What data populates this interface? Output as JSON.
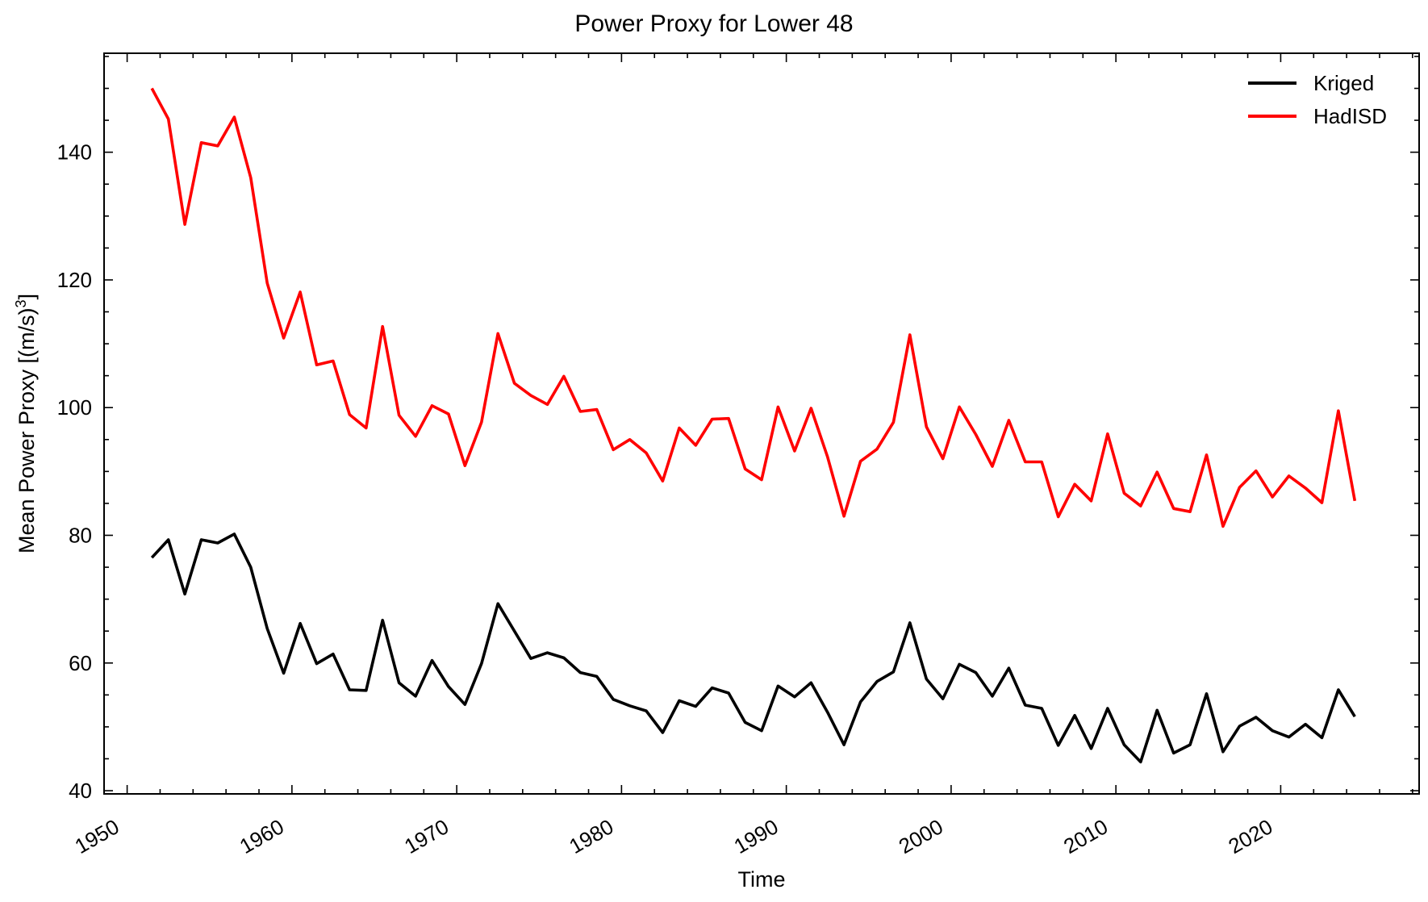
{
  "chart_data": {
    "type": "line",
    "title": "Power Proxy for Lower 48",
    "xlabel": "Time",
    "ylabel": "Mean Power Proxy [(m/s)",
    "ylabel_superscript": "3",
    "ylabel_suffix": "]",
    "xlim": [
      1948.6,
      2028.4
    ],
    "ylim": [
      39.5,
      155.5
    ],
    "x_ticks": [
      1950,
      1960,
      1970,
      1980,
      1990,
      2000,
      2010,
      2020
    ],
    "y_ticks": [
      40,
      60,
      80,
      100,
      120,
      140
    ],
    "grid": false,
    "legend_position": "top-right",
    "x": [
      1951.5,
      1952.5,
      1953.5,
      1954.5,
      1955.5,
      1956.5,
      1957.5,
      1958.5,
      1959.5,
      1960.5,
      1961.5,
      1962.5,
      1963.5,
      1964.5,
      1965.5,
      1966.5,
      1967.5,
      1968.5,
      1969.5,
      1970.5,
      1971.5,
      1972.5,
      1973.5,
      1974.5,
      1975.5,
      1976.5,
      1977.5,
      1978.5,
      1979.5,
      1980.5,
      1981.5,
      1982.5,
      1983.5,
      1984.5,
      1985.5,
      1986.5,
      1987.5,
      1988.5,
      1989.5,
      1990.5,
      1991.5,
      1992.5,
      1993.5,
      1994.5,
      1995.5,
      1996.5,
      1997.5,
      1998.5,
      1999.5,
      2000.5,
      2001.5,
      2002.5,
      2003.5,
      2004.5,
      2005.5,
      2006.5,
      2007.5,
      2008.5,
      2009.5,
      2010.5,
      2011.5,
      2012.5,
      2013.5,
      2014.5,
      2015.5,
      2016.5,
      2017.5,
      2018.5,
      2019.5,
      2020.5,
      2021.5,
      2022.5,
      2023.5,
      2024.5
    ],
    "series": [
      {
        "name": "Kriged",
        "color": "#000000",
        "values": [
          76.5,
          79.3,
          70.8,
          79.3,
          78.8,
          80.2,
          75.0,
          65.4,
          58.4,
          66.2,
          59.9,
          61.4,
          55.8,
          55.7,
          66.7,
          56.9,
          54.8,
          60.4,
          56.3,
          53.5,
          59.9,
          69.3,
          65.0,
          60.7,
          61.6,
          60.8,
          58.5,
          57.9,
          54.3,
          53.3,
          52.5,
          49.1,
          54.1,
          53.2,
          56.1,
          55.3,
          50.7,
          49.4,
          56.4,
          54.7,
          56.9,
          52.3,
          47.2,
          53.9,
          57.1,
          58.6,
          66.3,
          57.5,
          54.4,
          59.8,
          58.5,
          54.8,
          59.2,
          53.4,
          52.9,
          47.1,
          51.8,
          46.6,
          52.9,
          47.2,
          44.5,
          52.6,
          45.9,
          47.2,
          55.2,
          46.1,
          50.1,
          51.5,
          49.4,
          48.4,
          50.4,
          48.3,
          55.8,
          51.6
        ]
      },
      {
        "name": "HadISD",
        "color": "#ff0000",
        "values": [
          150.0,
          145.2,
          128.7,
          141.5,
          141.0,
          145.5,
          136.0,
          119.5,
          110.9,
          118.1,
          106.7,
          107.3,
          98.9,
          96.8,
          112.7,
          98.8,
          95.5,
          100.3,
          99.0,
          90.9,
          97.7,
          111.6,
          103.8,
          101.9,
          100.5,
          104.9,
          99.4,
          99.7,
          93.4,
          95.0,
          92.9,
          88.5,
          96.8,
          94.1,
          98.2,
          98.3,
          90.4,
          88.7,
          100.1,
          93.2,
          99.9,
          92.3,
          83.0,
          91.6,
          93.5,
          97.7,
          111.4,
          97.0,
          92.0,
          100.1,
          95.8,
          90.8,
          98.0,
          91.5,
          91.5,
          82.9,
          88.0,
          85.4,
          95.9,
          86.6,
          84.6,
          89.9,
          84.2,
          83.7,
          92.6,
          81.4,
          87.5,
          90.1,
          86.0,
          89.3,
          87.4,
          85.1,
          99.5,
          85.4
        ]
      }
    ]
  }
}
